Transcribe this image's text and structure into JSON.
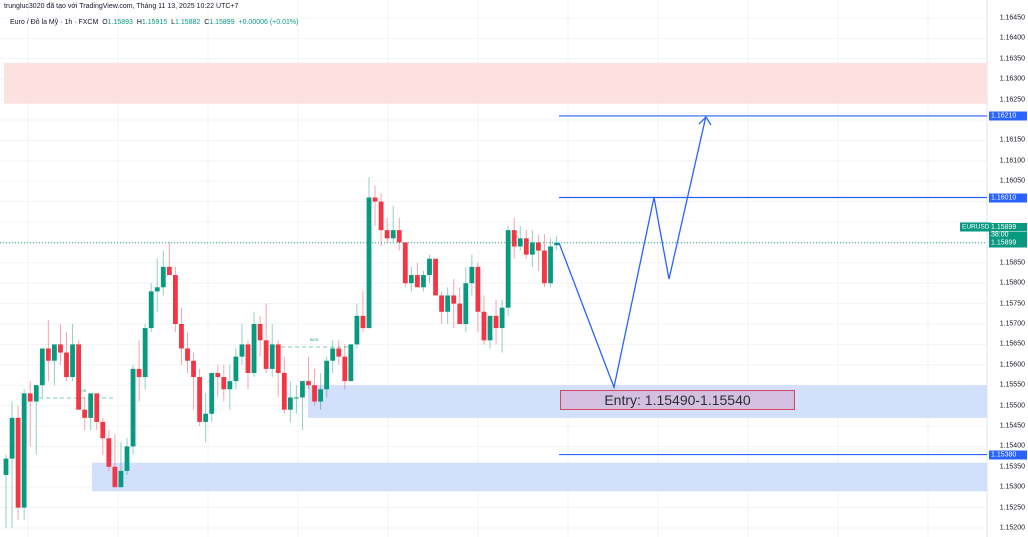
{
  "header": {
    "watermark": "trungluc3020 đã tạo với TradingView.com, Tháng 11 13, 2025 10:22 UTC+7",
    "symbol_desc": "Euro / Đô la Mỹ · 1h · FXCM",
    "open_label": "O",
    "open": "1.15893",
    "high_label": "H",
    "high": "1.15915",
    "low_label": "L",
    "low": "1.15882",
    "close_label": "C",
    "close": "1.15899",
    "change": "+0.00006 (+0.01%)"
  },
  "colors": {
    "up": "#089981",
    "down": "#f23645",
    "line": "#2962ff",
    "zone_blue": "#d2e0fb",
    "zone_red": "#fde0e0",
    "entry_fill": "#d4bfe0",
    "entry_border": "#d4475e"
  },
  "price_axis": {
    "labels": [
      "1.16450",
      "1.16400",
      "1.16350",
      "1.16300",
      "1.16250",
      "1.16150",
      "1.16100",
      "1.16050",
      "1.15850",
      "1.15800",
      "1.15750",
      "1.15700",
      "1.15650",
      "1.15600",
      "1.15550",
      "1.15500",
      "1.15450",
      "1.15400",
      "1.15350",
      "1.15300",
      "1.15250",
      "1.15200"
    ],
    "tags": {
      "target": "1.16210",
      "level_2": "1.16010",
      "current_symbol": "EURUSD",
      "current_price": "1.15899",
      "countdown": "38:00",
      "current_price_2": "1.15899",
      "stop": "1.15380"
    }
  },
  "annotations": {
    "entry_label": "Entry: 1.15490-1.15540",
    "bos_label_1": "BOS",
    "bos_label_2": "BOS"
  },
  "chart_data": {
    "type": "candlestick",
    "title": "Euro / Đô la Mỹ · 1h · FXCM",
    "symbol": "EURUSD",
    "timeframe": "1h",
    "ylim": [
      1.1518,
      1.1647
    ],
    "y_ticks": [
      1.152,
      1.1525,
      1.153,
      1.1535,
      1.154,
      1.1545,
      1.155,
      1.1555,
      1.156,
      1.1565,
      1.157,
      1.1575,
      1.158,
      1.1585,
      1.159,
      1.1595,
      1.16,
      1.1605,
      1.161,
      1.1615,
      1.162,
      1.1625,
      1.163,
      1.1635,
      1.164,
      1.1645
    ],
    "last": {
      "open": 1.15893,
      "high": 1.15915,
      "low": 1.15882,
      "close": 1.15899,
      "change": 6e-05,
      "change_pct": 0.01
    },
    "candles": [
      [
        1.1533,
        1.1538,
        1.152,
        1.1537
      ],
      [
        1.1537,
        1.1551,
        1.152,
        1.1547
      ],
      [
        1.1547,
        1.155,
        1.1522,
        1.1525
      ],
      [
        1.1525,
        1.1554,
        1.1522,
        1.1553
      ],
      [
        1.1553,
        1.1556,
        1.154,
        1.1551
      ],
      [
        1.1551,
        1.1554,
        1.1538,
        1.1555
      ],
      [
        1.1555,
        1.1559,
        1.1552,
        1.1564
      ],
      [
        1.1564,
        1.1571,
        1.1556,
        1.1561
      ],
      [
        1.1561,
        1.1564,
        1.1555,
        1.1565
      ],
      [
        1.1565,
        1.157,
        1.156,
        1.1563
      ],
      [
        1.1563,
        1.1568,
        1.1556,
        1.1557
      ],
      [
        1.1557,
        1.157,
        1.1556,
        1.1565
      ],
      [
        1.1565,
        1.1566,
        1.1549,
        1.1549
      ],
      [
        1.1549,
        1.1552,
        1.1544,
        1.1547
      ],
      [
        1.1547,
        1.1553,
        1.1544,
        1.1553
      ],
      [
        1.1553,
        1.1553,
        1.1544,
        1.1546
      ],
      [
        1.1546,
        1.1547,
        1.1538,
        1.1542
      ],
      [
        1.1542,
        1.1544,
        1.1534,
        1.1535
      ],
      [
        1.1535,
        1.1543,
        1.153,
        1.153
      ],
      [
        1.153,
        1.1541,
        1.153,
        1.1534
      ],
      [
        1.1534,
        1.1542,
        1.1533,
        1.154
      ],
      [
        1.154,
        1.156,
        1.1538,
        1.1559
      ],
      [
        1.1559,
        1.1566,
        1.1551,
        1.1557
      ],
      [
        1.1557,
        1.157,
        1.1554,
        1.1569
      ],
      [
        1.1569,
        1.158,
        1.1568,
        1.1578
      ],
      [
        1.1578,
        1.1586,
        1.1573,
        1.1579
      ],
      [
        1.1579,
        1.1588,
        1.1577,
        1.1584
      ],
      [
        1.1584,
        1.159,
        1.1582,
        1.1582
      ],
      [
        1.1582,
        1.1584,
        1.1568,
        1.157
      ],
      [
        1.157,
        1.1574,
        1.156,
        1.1564
      ],
      [
        1.1564,
        1.1568,
        1.1558,
        1.1561
      ],
      [
        1.1561,
        1.1563,
        1.1549,
        1.1557
      ],
      [
        1.1557,
        1.1559,
        1.1545,
        1.1546
      ],
      [
        1.1546,
        1.1553,
        1.1541,
        1.1548
      ],
      [
        1.1548,
        1.1558,
        1.1546,
        1.1558
      ],
      [
        1.1558,
        1.156,
        1.1552,
        1.1557
      ],
      [
        1.1557,
        1.156,
        1.1551,
        1.1554
      ],
      [
        1.1554,
        1.156,
        1.1549,
        1.1556
      ],
      [
        1.1556,
        1.1564,
        1.1554,
        1.1562
      ],
      [
        1.1562,
        1.157,
        1.156,
        1.1565
      ],
      [
        1.1565,
        1.1566,
        1.1554,
        1.1558
      ],
      [
        1.1558,
        1.1573,
        1.1557,
        1.157
      ],
      [
        1.157,
        1.1572,
        1.1562,
        1.1566
      ],
      [
        1.1566,
        1.1575,
        1.1558,
        1.1559
      ],
      [
        1.1559,
        1.157,
        1.1557,
        1.1565
      ],
      [
        1.1565,
        1.1566,
        1.1552,
        1.1558
      ],
      [
        1.1558,
        1.1562,
        1.1548,
        1.1549
      ],
      [
        1.1549,
        1.1556,
        1.1546,
        1.1552
      ],
      [
        1.1552,
        1.1555,
        1.1548,
        1.1552
      ],
      [
        1.1552,
        1.1555,
        1.1544,
        1.1556
      ],
      [
        1.1556,
        1.1562,
        1.1554,
        1.1555
      ],
      [
        1.1555,
        1.1559,
        1.155,
        1.1551
      ],
      [
        1.1551,
        1.1558,
        1.1549,
        1.1554
      ],
      [
        1.1554,
        1.1562,
        1.1552,
        1.1561
      ],
      [
        1.1561,
        1.1566,
        1.1558,
        1.1564
      ],
      [
        1.1564,
        1.1566,
        1.156,
        1.1562
      ],
      [
        1.1562,
        1.1565,
        1.1554,
        1.1556
      ],
      [
        1.1556,
        1.1565,
        1.1556,
        1.1565
      ],
      [
        1.1565,
        1.1575,
        1.1564,
        1.1572
      ],
      [
        1.1572,
        1.1578,
        1.1568,
        1.1569
      ],
      [
        1.1569,
        1.1606,
        1.1569,
        1.1601
      ],
      [
        1.1601,
        1.1604,
        1.1594,
        1.16
      ],
      [
        1.16,
        1.1602,
        1.1589,
        1.1593
      ],
      [
        1.1593,
        1.1596,
        1.159,
        1.1591
      ],
      [
        1.1591,
        1.1599,
        1.159,
        1.1593
      ],
      [
        1.1593,
        1.1596,
        1.1588,
        1.159
      ],
      [
        1.159,
        1.159,
        1.1579,
        1.158
      ],
      [
        1.158,
        1.1584,
        1.1578,
        1.1582
      ],
      [
        1.1582,
        1.1585,
        1.158,
        1.1579
      ],
      [
        1.1579,
        1.1583,
        1.1578,
        1.1582
      ],
      [
        1.1582,
        1.1587,
        1.158,
        1.1586
      ],
      [
        1.1586,
        1.1586,
        1.1577,
        1.1577
      ],
      [
        1.1577,
        1.1578,
        1.157,
        1.1573
      ],
      [
        1.1573,
        1.1579,
        1.157,
        1.1577
      ],
      [
        1.1577,
        1.1581,
        1.1569,
        1.1575
      ],
      [
        1.1575,
        1.1579,
        1.157,
        1.157
      ],
      [
        1.157,
        1.1584,
        1.1568,
        1.158
      ],
      [
        1.158,
        1.1587,
        1.1577,
        1.1584
      ],
      [
        1.1584,
        1.1585,
        1.1568,
        1.1573
      ],
      [
        1.1573,
        1.1577,
        1.1565,
        1.1566
      ],
      [
        1.1566,
        1.1572,
        1.1564,
        1.1572
      ],
      [
        1.1572,
        1.1576,
        1.1565,
        1.1569
      ],
      [
        1.1569,
        1.1576,
        1.1563,
        1.1574
      ],
      [
        1.1574,
        1.1594,
        1.1572,
        1.1593
      ],
      [
        1.1593,
        1.1596,
        1.1586,
        1.1589
      ],
      [
        1.1589,
        1.1594,
        1.1588,
        1.1591
      ],
      [
        1.1591,
        1.1593,
        1.1586,
        1.1587
      ],
      [
        1.1587,
        1.1593,
        1.1584,
        1.159
      ],
      [
        1.159,
        1.1592,
        1.1583,
        1.1588
      ],
      [
        1.1588,
        1.1592,
        1.1579,
        1.158
      ],
      [
        1.158,
        1.1591,
        1.1579,
        1.1589
      ],
      [
        1.15893,
        1.15915,
        1.15882,
        1.15899
      ]
    ],
    "zones": [
      {
        "name": "supply-zone",
        "from": 1.1624,
        "to": 1.1634,
        "color": "#fde0e0"
      },
      {
        "name": "demand-zone-entry",
        "from": 1.1547,
        "to": 1.1555,
        "color": "#d2e0fb"
      },
      {
        "name": "demand-zone-low",
        "from": 1.1529,
        "to": 1.1536,
        "color": "#d2e0fb"
      }
    ],
    "horizontal_lines": [
      {
        "name": "target",
        "price": 1.1621
      },
      {
        "name": "level",
        "price": 1.1601
      },
      {
        "name": "stop",
        "price": 1.1538
      },
      {
        "name": "current",
        "price": 1.15899,
        "style": "dotted"
      }
    ],
    "projection_path_prices": [
      1.15899,
      1.15545,
      1.1601,
      1.1581,
      1.1621
    ],
    "annotations": [
      "Entry: 1.15490-1.15540",
      "BOS",
      "BOS"
    ]
  }
}
